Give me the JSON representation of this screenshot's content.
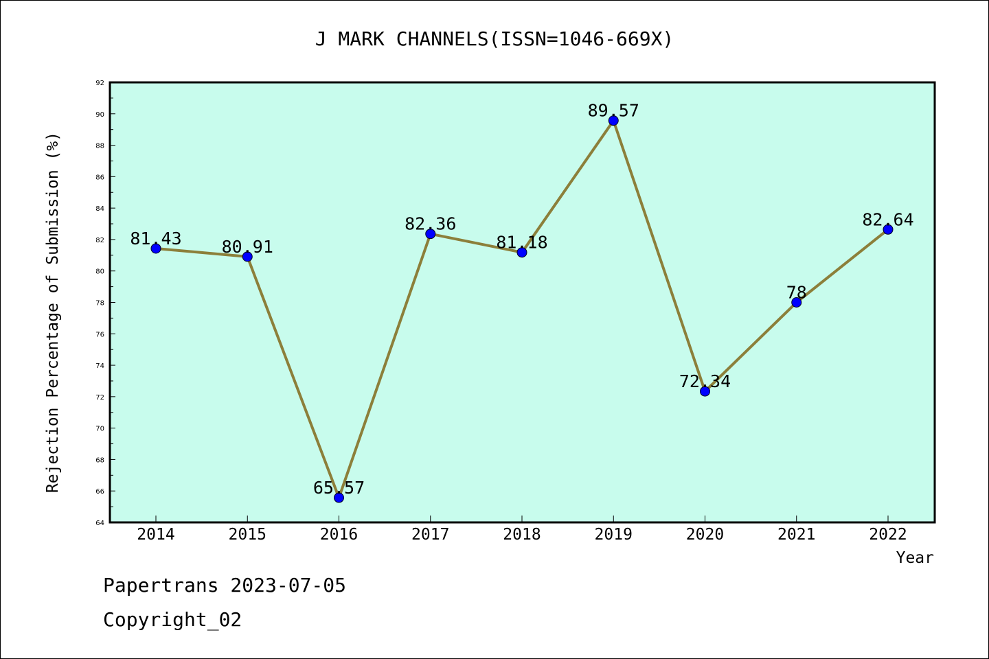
{
  "chart_data": {
    "type": "line",
    "title": "J MARK CHANNELS(ISSN=1046-669X)",
    "xlabel": "Year",
    "ylabel": "Rejection Percentage of Submission (%)",
    "categories": [
      "2014",
      "2015",
      "2016",
      "2017",
      "2018",
      "2019",
      "2020",
      "2021",
      "2022"
    ],
    "series": [
      {
        "values": [
          81.43,
          80.91,
          65.57,
          82.36,
          81.18,
          89.57,
          72.34,
          78,
          82.64
        ],
        "labels": [
          "81.43",
          "80.91",
          "65.57",
          "82.36",
          "81.18",
          "89.57",
          "72.34",
          "78",
          "82.64"
        ],
        "line_color": "#8c7f3a",
        "marker_color": "#0000ff"
      }
    ],
    "ylim": [
      64,
      92
    ],
    "yticks": [
      "64",
      "66",
      "68",
      "70",
      "72",
      "74",
      "76",
      "78",
      "80",
      "82",
      "84",
      "86",
      "88",
      "90",
      "92"
    ],
    "plot_background": "#c8fced",
    "grid": false,
    "legend": "none"
  },
  "footer": {
    "line1": "Papertrans 2023-07-05",
    "line2": "Copyright_02"
  }
}
